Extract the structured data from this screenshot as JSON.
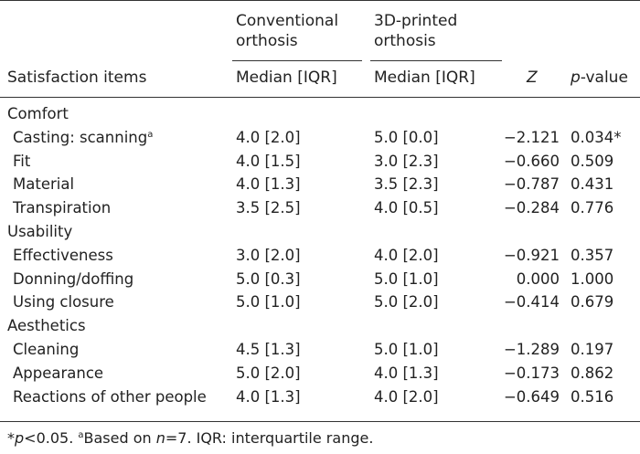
{
  "header": {
    "group1_line1": "Conventional",
    "group1_line2": "orthosis",
    "group2_line1": "3D-printed",
    "group2_line2": "orthosis",
    "col_item": "Satisfaction items",
    "col_median1": "Median [IQR]",
    "col_median2": "Median [IQR]",
    "col_z": "Z",
    "col_p_italic": "p",
    "col_p_rest": "-value"
  },
  "sections": [
    {
      "title": "Comfort",
      "rows": [
        {
          "item": "Casting: scanning",
          "sup": "a",
          "conv": "4.0 [2.0]",
          "printed": "5.0 [0.0]",
          "z": "−2.121",
          "p": "0.034*"
        },
        {
          "item": "Fit",
          "sup": "",
          "conv": "4.0 [1.5]",
          "printed": "3.0 [2.3]",
          "z": "−0.660",
          "p": "0.509"
        },
        {
          "item": "Material",
          "sup": "",
          "conv": "4.0 [1.3]",
          "printed": "3.5 [2.3]",
          "z": "−0.787",
          "p": "0.431"
        },
        {
          "item": "Transpiration",
          "sup": "",
          "conv": "3.5 [2.5]",
          "printed": "4.0 [0.5]",
          "z": "−0.284",
          "p": "0.776"
        }
      ]
    },
    {
      "title": "Usability",
      "rows": [
        {
          "item": "Effectiveness",
          "sup": "",
          "conv": "3.0 [2.0]",
          "printed": "4.0 [2.0]",
          "z": "−0.921",
          "p": "0.357"
        },
        {
          "item": "Donning/doffing",
          "sup": "",
          "conv": "5.0 [0.3]",
          "printed": "5.0 [1.0]",
          "z": "0.000",
          "p": "1.000"
        },
        {
          "item": "Using closure",
          "sup": "",
          "conv": "5.0 [1.0]",
          "printed": "5.0 [2.0]",
          "z": "−0.414",
          "p": "0.679"
        }
      ]
    },
    {
      "title": "Aesthetics",
      "rows": [
        {
          "item": "Cleaning",
          "sup": "",
          "conv": "4.5 [1.3]",
          "printed": "5.0 [1.0]",
          "z": "−1.289",
          "p": "0.197"
        },
        {
          "item": "Appearance",
          "sup": "",
          "conv": "5.0 [2.0]",
          "printed": "4.0 [1.3]",
          "z": "−0.173",
          "p": "0.862"
        },
        {
          "item": "Reactions of other people",
          "sup": "",
          "conv": "4.0 [1.3]",
          "printed": "4.0 [2.0]",
          "z": "−0.649",
          "p": "0.516"
        }
      ]
    }
  ],
  "footnote": {
    "star": "*",
    "p_italic": "p",
    "p_text": "<0.05. ",
    "a_sup": "a",
    "based_text": "Based on ",
    "n_italic": "n",
    "n_rest": "=7. IQR: interquartile range."
  }
}
